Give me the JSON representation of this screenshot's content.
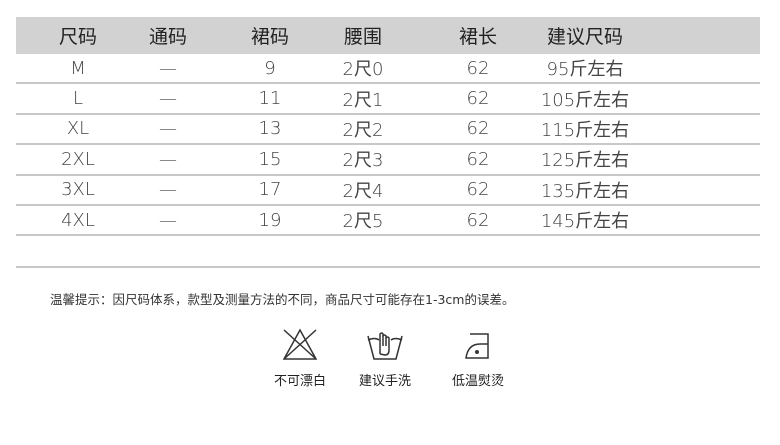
{
  "table": {
    "headers": [
      "尺码",
      "通码",
      "裙码",
      "腰围",
      "裙长",
      "建议尺码"
    ],
    "rows": [
      [
        "M",
        "—",
        "9",
        "2尺0",
        "62",
        "95斤左右"
      ],
      [
        "L",
        "—",
        "11",
        "2尺1",
        "62",
        "105斤左右"
      ],
      [
        "XL",
        "—",
        "13",
        "2尺2",
        "62",
        "115斤左右"
      ],
      [
        "2XL",
        "—",
        "15",
        "2尺3",
        "62",
        "125斤左右"
      ],
      [
        "3XL",
        "—",
        "17",
        "2尺4",
        "62",
        "135斤左右"
      ],
      [
        "4XL",
        "—",
        "19",
        "2尺5",
        "62",
        "145斤左右"
      ]
    ]
  },
  "note": "温馨提示：因尺码体系，款型及测量方法的不同，商品尺寸可能存在1-3cm的误差。",
  "care": [
    {
      "icon": "no-bleach-icon",
      "label": "不可漂白"
    },
    {
      "icon": "hand-wash-icon",
      "label": "建议手洗"
    },
    {
      "icon": "low-iron-icon",
      "label": "低温熨烫"
    }
  ]
}
